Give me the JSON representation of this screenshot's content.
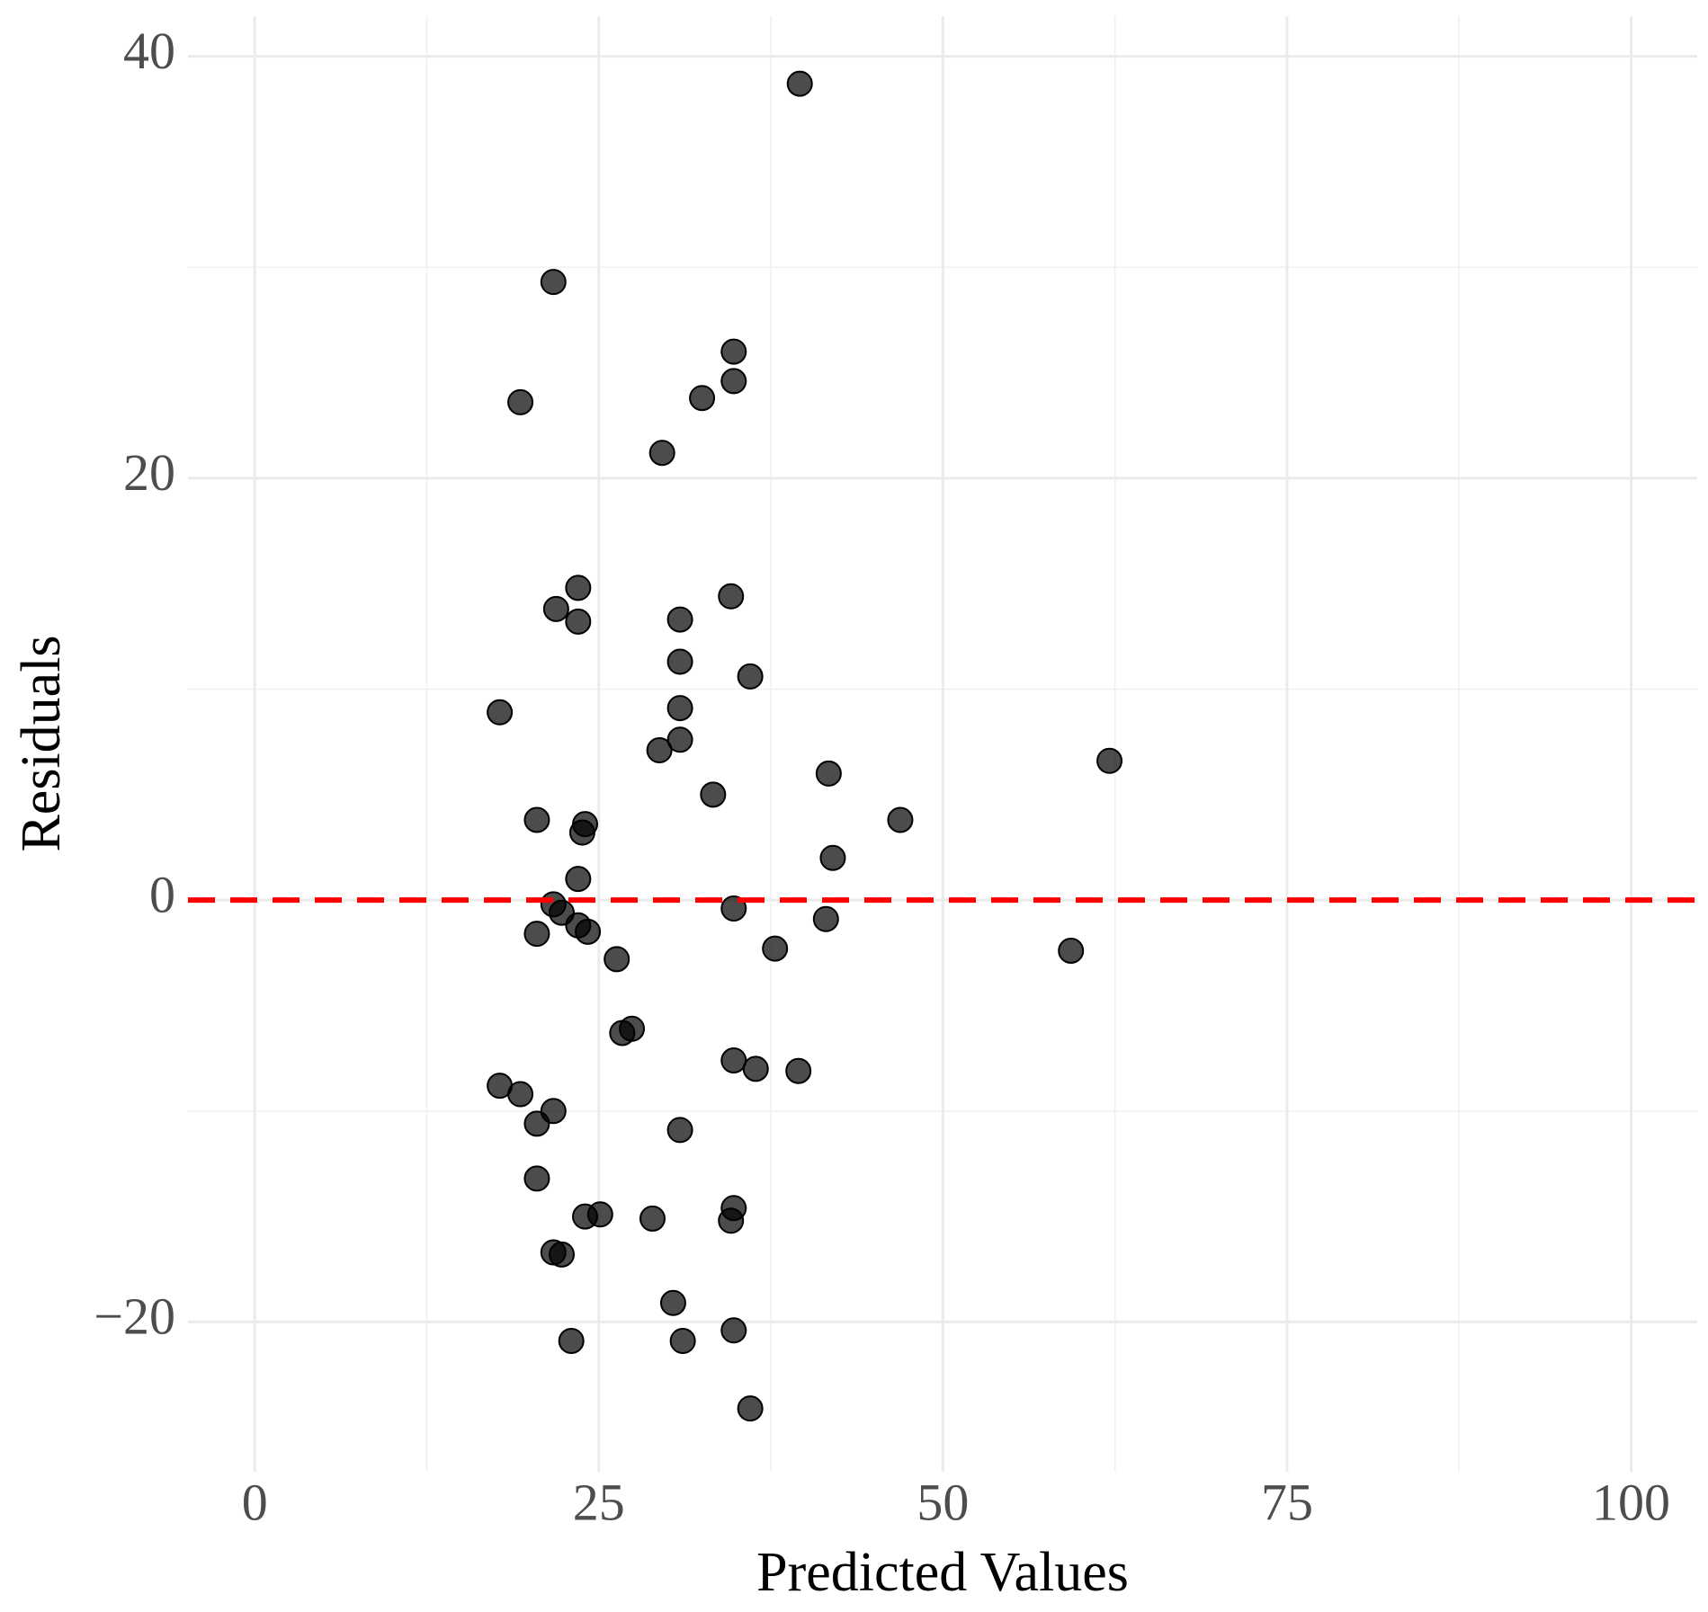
{
  "chart_data": {
    "type": "scatter",
    "xlabel": "Predicted Values",
    "ylabel": "Residuals",
    "x": [
      39.6,
      21.7,
      34.8,
      34.8,
      32.5,
      19.3,
      29.6,
      23.5,
      34.6,
      21.9,
      23.5,
      30.9,
      30.9,
      36.0,
      30.9,
      17.8,
      30.9,
      29.4,
      62.1,
      41.7,
      33.3,
      20.5,
      46.9,
      24.0,
      23.8,
      42.0,
      23.5,
      21.7,
      22.3,
      34.8,
      23.5,
      24.2,
      20.5,
      41.5,
      37.8,
      59.3,
      26.3,
      27.4,
      26.7,
      34.8,
      36.4,
      39.5,
      17.8,
      19.3,
      21.7,
      20.5,
      30.9,
      20.5,
      34.8,
      25.1,
      24.0,
      28.9,
      34.6,
      21.7,
      22.3,
      30.4,
      34.8,
      23.0,
      31.1,
      36.0
    ],
    "values": [
      38.7,
      29.3,
      26.0,
      24.6,
      23.8,
      23.6,
      21.2,
      14.8,
      14.4,
      13.8,
      13.2,
      13.3,
      11.3,
      10.6,
      9.1,
      8.9,
      7.6,
      7.1,
      6.6,
      6.0,
      5.0,
      3.8,
      3.8,
      3.6,
      3.2,
      2.0,
      1.0,
      -0.2,
      -0.6,
      -0.4,
      -1.2,
      -1.5,
      -1.6,
      -0.9,
      -2.3,
      -2.4,
      -2.8,
      -6.1,
      -6.3,
      -7.6,
      -8.0,
      -8.1,
      -8.8,
      -9.2,
      -10.0,
      -10.6,
      -10.9,
      -13.2,
      -14.6,
      -14.9,
      -15.0,
      -15.1,
      -15.2,
      -16.7,
      -16.8,
      -19.1,
      -20.4,
      -20.9,
      -20.9,
      -24.1
    ],
    "color": "#000000",
    "xlim": [
      -4.85,
      104.8
    ],
    "ylim": [
      -27.1,
      41.9
    ],
    "xticks": [
      0,
      25,
      50,
      75,
      100
    ],
    "yticks": [
      {
        "value": -20,
        "label": "−20"
      },
      0,
      20,
      40
    ],
    "xminor": [
      12.5,
      37.5,
      62.5,
      87.5
    ],
    "yminor": [
      -10,
      10,
      30
    ],
    "grid": true,
    "hline": 0,
    "hline_color": "#ff0000"
  }
}
